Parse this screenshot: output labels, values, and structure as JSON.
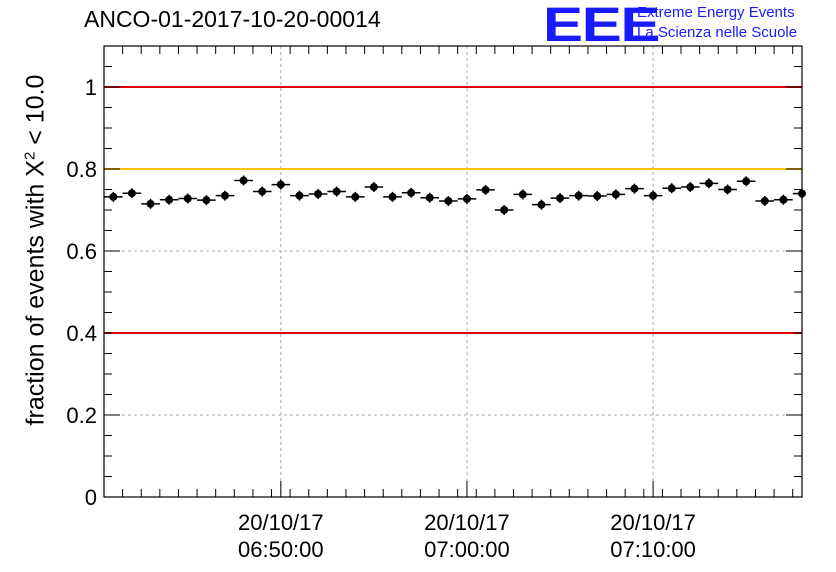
{
  "header": {
    "title": "ANCO-01-2017-10-20-00014",
    "logo_text": "EEE",
    "org_line1": "Extreme Energy Events",
    "org_line2": "La Scienza nelle Scuole"
  },
  "chart_data": {
    "type": "scatter",
    "title": "ANCO-01-2017-10-20-00014",
    "xlabel": "",
    "ylabel_main": "fraction of events with X",
    "ylabel_sup": "2",
    "ylabel_tail": " < 10.0",
    "ylim": [
      0,
      1.1
    ],
    "y_ticks": [
      {
        "value": 0,
        "label": "0"
      },
      {
        "value": 0.2,
        "label": "0.2"
      },
      {
        "value": 0.4,
        "label": "0.4"
      },
      {
        "value": 0.6,
        "label": "0.6"
      },
      {
        "value": 0.8,
        "label": "0.8"
      },
      {
        "value": 1,
        "label": "1"
      }
    ],
    "x_unit": "minutes after 06:40:00",
    "xlim": [
      0,
      37.5
    ],
    "x_ticks": [
      {
        "value": 9.5,
        "date": "20/10/17",
        "time": "06:50:00"
      },
      {
        "value": 19.5,
        "date": "20/10/17",
        "time": "07:00:00"
      },
      {
        "value": 29.5,
        "date": "20/10/17",
        "time": "07:10:00"
      }
    ],
    "grid": true,
    "reference_lines": [
      {
        "value": 1.0,
        "color": "#e00000"
      },
      {
        "value": 0.8,
        "color": "#ffc000"
      },
      {
        "value": 0.4,
        "color": "#e00000"
      }
    ],
    "bin_width": 1.0,
    "marker_color": "#000000",
    "series": [
      {
        "name": "fraction",
        "x": [
          0.5,
          1.5,
          2.5,
          3.5,
          4.5,
          5.5,
          6.5,
          7.5,
          8.5,
          9.5,
          10.5,
          11.5,
          12.5,
          13.5,
          14.5,
          15.5,
          16.5,
          17.5,
          18.5,
          19.5,
          20.5,
          21.5,
          22.5,
          23.5,
          24.5,
          25.5,
          26.5,
          27.5,
          28.5,
          29.5,
          30.5,
          31.5,
          32.5,
          33.5,
          34.5,
          35.5,
          36.5,
          37.5
        ],
        "values": [
          0.732,
          0.741,
          0.715,
          0.725,
          0.728,
          0.724,
          0.735,
          0.772,
          0.745,
          0.762,
          0.735,
          0.739,
          0.745,
          0.732,
          0.756,
          0.732,
          0.742,
          0.73,
          0.722,
          0.727,
          0.749,
          0.7,
          0.738,
          0.713,
          0.729,
          0.735,
          0.734,
          0.738,
          0.752,
          0.735,
          0.753,
          0.756,
          0.765,
          0.75,
          0.77,
          0.722,
          0.725,
          0.74
        ]
      }
    ]
  }
}
